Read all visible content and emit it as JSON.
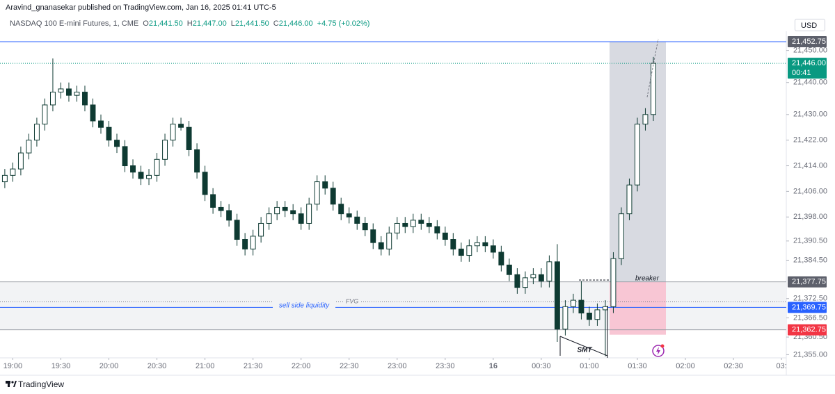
{
  "header": {
    "published": "Aravind_gnanasekar published on TradingView.com, Jan 16, 2025 01:41 UTC-5",
    "symbol": "NASDAQ 100 E-mini Futures, 1, CME",
    "ohlc": [
      {
        "key": "O",
        "value": "21,441.50"
      },
      {
        "key": "H",
        "value": "21,447.00"
      },
      {
        "key": "L",
        "value": "21,441.50"
      },
      {
        "key": "C",
        "value": "21,446.00"
      }
    ],
    "change": "+4.75 (+0.02%)",
    "currency": "USD"
  },
  "chart_data": {
    "type": "candlestick",
    "x": [
      -5,
      0,
      5,
      10,
      15,
      20,
      25,
      30,
      35,
      40,
      45,
      50,
      55,
      60,
      65,
      70,
      75,
      80,
      85,
      90,
      95,
      100,
      105,
      110,
      115,
      120,
      125,
      130,
      135,
      140,
      145,
      150,
      155,
      160,
      165,
      170,
      175,
      180,
      185,
      190,
      195,
      200,
      205,
      210,
      215,
      220,
      225,
      230,
      235,
      240,
      245,
      250,
      255,
      260,
      265,
      270,
      275,
      280,
      285,
      290,
      295,
      300,
      305,
      310,
      315,
      320,
      325,
      330,
      335,
      340,
      345,
      350,
      355,
      360,
      365,
      370,
      375,
      380,
      385,
      390,
      395,
      400
    ],
    "open": [
      21409,
      21411,
      21413,
      21418,
      21422,
      21427,
      21433,
      21437,
      21438,
      21436,
      21437,
      21433,
      21428,
      21426,
      21422,
      21420,
      21414,
      21412,
      21410,
      21411,
      21416,
      21422,
      21427,
      21426,
      21419,
      21412,
      21405,
      21401,
      21400,
      21397,
      21391,
      21388,
      21392,
      21396,
      21399,
      21401,
      21400,
      21399,
      21396,
      21402,
      21409,
      21407,
      21402,
      21399,
      21398,
      21396,
      21394,
      21390,
      21388,
      21393,
      21396,
      21395,
      21397,
      21396,
      21395,
      21393,
      21391,
      21388,
      21386,
      21389,
      21390,
      21389,
      21387,
      21383,
      21380,
      21376,
      21379,
      21380,
      21378,
      21384,
      21363,
      21370,
      21372,
      21368,
      21366,
      21369,
      21370,
      21385,
      21399,
      21408,
      21427,
      21430
    ],
    "high": [
      21413,
      21415,
      21420,
      21424,
      21429,
      21435,
      21447.5,
      21440,
      21440,
      21439,
      21439,
      21435,
      21430,
      21428,
      21424,
      21422,
      21416,
      21414,
      21413,
      21418,
      21424,
      21429,
      21429,
      21428,
      21421,
      21414,
      21407,
      21403,
      21402,
      21399,
      21393,
      21394,
      21398,
      21401,
      21403,
      21403,
      21402,
      21401,
      21404,
      21411,
      21411,
      21409,
      21404,
      21401,
      21400,
      21398,
      21396,
      21392,
      21395,
      21398,
      21398,
      21399,
      21399,
      21398,
      21397,
      21395,
      21393,
      21390,
      21391,
      21392,
      21392,
      21391,
      21389,
      21385,
      21382,
      21381,
      21382,
      21382,
      21386,
      21389.5,
      21372,
      21374,
      21378,
      21370,
      21371,
      21372,
      21387,
      21401,
      21410,
      21429,
      21432,
      21448
    ],
    "low": [
      21407,
      21409,
      21411,
      21416,
      21420,
      21425,
      21431,
      21435,
      21434,
      21434,
      21431,
      21426,
      21424,
      21420,
      21418,
      21412,
      21410,
      21408,
      21408,
      21409,
      21414,
      21420,
      21425,
      21417,
      21410,
      21403,
      21399,
      21398,
      21395,
      21389,
      21386,
      21386,
      21390,
      21394,
      21397,
      21398,
      21397,
      21394,
      21394,
      21400,
      21405,
      21400,
      21397,
      21396,
      21394,
      21392,
      21388,
      21386,
      21386,
      21391,
      21393,
      21393,
      21394,
      21393,
      21391,
      21389,
      21386,
      21384,
      21384,
      21387,
      21387,
      21385,
      21381,
      21378,
      21374,
      21374,
      21377,
      21376,
      21376,
      21359,
      21361,
      21368,
      21366,
      21364,
      21364,
      21354.5,
      21368,
      21383,
      21397,
      21406,
      21425,
      21428
    ],
    "close": [
      21411,
      21413,
      21418,
      21422,
      21427,
      21433,
      21437,
      21438,
      21436,
      21437,
      21433,
      21428,
      21426,
      21422,
      21420,
      21414,
      21412,
      21410,
      21411,
      21416,
      21422,
      21427,
      21426,
      21419,
      21412,
      21405,
      21401,
      21400,
      21397,
      21391,
      21388,
      21392,
      21396,
      21399,
      21401,
      21400,
      21399,
      21396,
      21402,
      21409,
      21407,
      21402,
      21399,
      21398,
      21396,
      21394,
      21390,
      21388,
      21393,
      21396,
      21395,
      21397,
      21396,
      21395,
      21393,
      21391,
      21388,
      21386,
      21389,
      21390,
      21389,
      21387,
      21383,
      21380,
      21376,
      21379,
      21380,
      21378,
      21384,
      21363,
      21370,
      21372,
      21368,
      21366,
      21369,
      21370,
      21385,
      21399,
      21408,
      21427,
      21430,
      21446
    ],
    "up_color": "#ffffff",
    "down_color": "#0e3a32",
    "wick_color": "#0e3a32",
    "xlim": [
      -8,
      483
    ],
    "ylim": [
      21354,
      21456
    ],
    "xticks": [
      {
        "value": 0,
        "label": "19:00"
      },
      {
        "value": 30,
        "label": "19:30"
      },
      {
        "value": 60,
        "label": "20:00"
      },
      {
        "value": 90,
        "label": "20:30"
      },
      {
        "value": 120,
        "label": "21:00"
      },
      {
        "value": 150,
        "label": "21:30"
      },
      {
        "value": 180,
        "label": "22:00"
      },
      {
        "value": 210,
        "label": "22:30"
      },
      {
        "value": 240,
        "label": "23:00"
      },
      {
        "value": 270,
        "label": "23:30"
      },
      {
        "value": 300,
        "label": "16"
      },
      {
        "value": 330,
        "label": "00:30"
      },
      {
        "value": 360,
        "label": "01:00"
      },
      {
        "value": 390,
        "label": "01:30"
      },
      {
        "value": 420,
        "label": "02:00"
      },
      {
        "value": 450,
        "label": "02:30"
      },
      {
        "value": 480,
        "label": "03:"
      }
    ],
    "yticks": [
      {
        "value": 21450,
        "label": "21,450.00"
      },
      {
        "value": 21440,
        "label": "21,440.00"
      },
      {
        "value": 21430,
        "label": "21,430.00"
      },
      {
        "value": 21422,
        "label": "21,422.00"
      },
      {
        "value": 21414,
        "label": "21,414.00"
      },
      {
        "value": 21406,
        "label": "21,406.00"
      },
      {
        "value": 21398,
        "label": "21,398.00"
      },
      {
        "value": 21390.5,
        "label": "21,390.50"
      },
      {
        "value": 21384.5,
        "label": "21,384.50"
      },
      {
        "value": 21372.5,
        "label": "21,372.50"
      },
      {
        "value": 21366.5,
        "label": "21,366.50"
      },
      {
        "value": 21360.5,
        "label": "21,360.50"
      },
      {
        "value": 21355,
        "label": "21,355.00"
      }
    ],
    "grid": false,
    "price_lines": [
      {
        "value": 21452.75,
        "label": "21,452.75",
        "bg": "#5d606b",
        "line": "#2962ff",
        "style": "solid"
      },
      {
        "value": 21446,
        "label": "21,446.00",
        "countdown": "00:41",
        "bg": "#089981",
        "line": "#089981",
        "style": "dotted"
      },
      {
        "value": 21377.75,
        "label": "21,377.75",
        "bg": "#5d606b",
        "line": "#9598a1",
        "style": "solid"
      },
      {
        "value": 21369.75,
        "label": "21,369.75",
        "bg": "#2962ff",
        "line": "#2962ff",
        "style": "solid"
      },
      {
        "value": 21362.75,
        "label": "21,362.75",
        "bg": "#f23645",
        "line": "#9598a1",
        "style": "solid"
      }
    ],
    "annotations": {
      "fvg": "FVG",
      "liquidity": "sell side liquidity",
      "breaker": "breaker",
      "smt": "SMT"
    }
  },
  "footer": {
    "brand": "TradingView"
  }
}
